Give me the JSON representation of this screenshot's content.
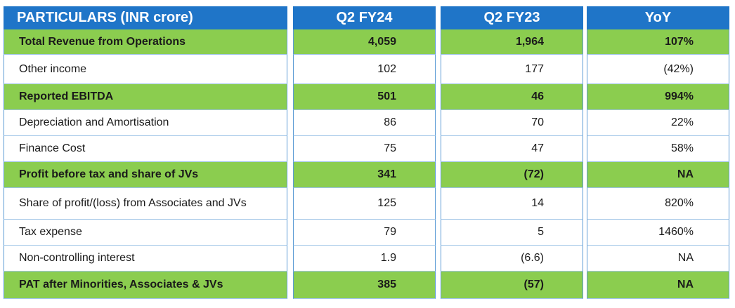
{
  "table": {
    "headers": [
      "PARTICULARS (INR crore)",
      "Q2 FY24",
      "Q2 FY23",
      "YoY"
    ],
    "rows": [
      {
        "label": "Total Revenue from Operations",
        "q2fy24": "4,059",
        "q2fy23": "1,964",
        "yoy": "107%",
        "highlight": true
      },
      {
        "label": "Other income",
        "q2fy24": "102",
        "q2fy23": "177",
        "yoy": "(42%)",
        "highlight": false
      },
      {
        "label": "Reported EBITDA",
        "q2fy24": "501",
        "q2fy23": "46",
        "yoy": "994%",
        "highlight": true
      },
      {
        "label": "Depreciation and Amortisation",
        "q2fy24": "86",
        "q2fy23": "70",
        "yoy": "22%",
        "highlight": false
      },
      {
        "label": "Finance Cost",
        "q2fy24": "75",
        "q2fy23": "47",
        "yoy": "58%",
        "highlight": false
      },
      {
        "label": "Profit before tax and share of JVs",
        "q2fy24": "341",
        "q2fy23": "(72)",
        "yoy": "NA",
        "highlight": true
      },
      {
        "label": "Share of profit/(loss) from Associates and JVs",
        "q2fy24": "125",
        "q2fy23": "14",
        "yoy": "820%",
        "highlight": false
      },
      {
        "label": "Tax expense",
        "q2fy24": "79",
        "q2fy23": "5",
        "yoy": "1460%",
        "highlight": false
      },
      {
        "label": "Non-controlling interest",
        "q2fy24": "1.9",
        "q2fy23": "(6.6)",
        "yoy": "NA",
        "highlight": false
      },
      {
        "label": "PAT after Minorities, Associates & JVs",
        "q2fy24": "385",
        "q2fy23": "(57)",
        "yoy": "NA",
        "highlight": true
      }
    ]
  },
  "colors": {
    "header": "#1f75c8",
    "highlight": "#8bcd4f",
    "border": "#5b9bd5"
  }
}
